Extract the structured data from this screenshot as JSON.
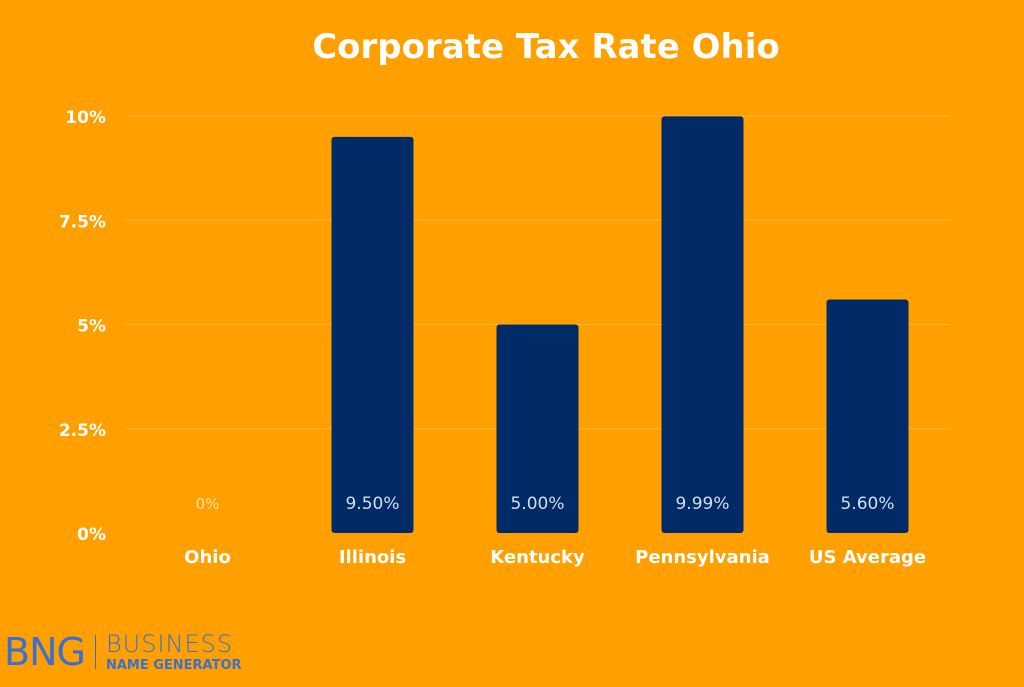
{
  "chart_data": {
    "type": "bar",
    "title": "Corporate Tax Rate Ohio",
    "categories": [
      "Ohio",
      "Illinois",
      "Kentucky",
      "Pennsylvania",
      "US Average"
    ],
    "values": [
      0,
      9.5,
      5.0,
      9.99,
      5.6
    ],
    "value_labels": [
      "0%",
      "9.50%",
      "5.00%",
      "9.99%",
      "5.60%"
    ],
    "ylim": [
      0,
      10
    ],
    "yticks": [
      0,
      2.5,
      5,
      7.5,
      10
    ],
    "ytick_labels": [
      "0%",
      "2.5%",
      "5%",
      "7.5%",
      "10%"
    ],
    "xlabel": "",
    "ylabel": "",
    "grid": true,
    "colors": {
      "background": "#FFA000",
      "bar": "#002B66",
      "text": "#FFFFFF",
      "grid": "#FFB53A",
      "value_label_on_bar": "#D8DEEA",
      "value_label_zero": "#FFE2A6"
    }
  },
  "logo": {
    "mark": "BNG",
    "word1": "BUSINESS",
    "word2": "NAME GENERATOR",
    "color": "#3C6FD1"
  }
}
